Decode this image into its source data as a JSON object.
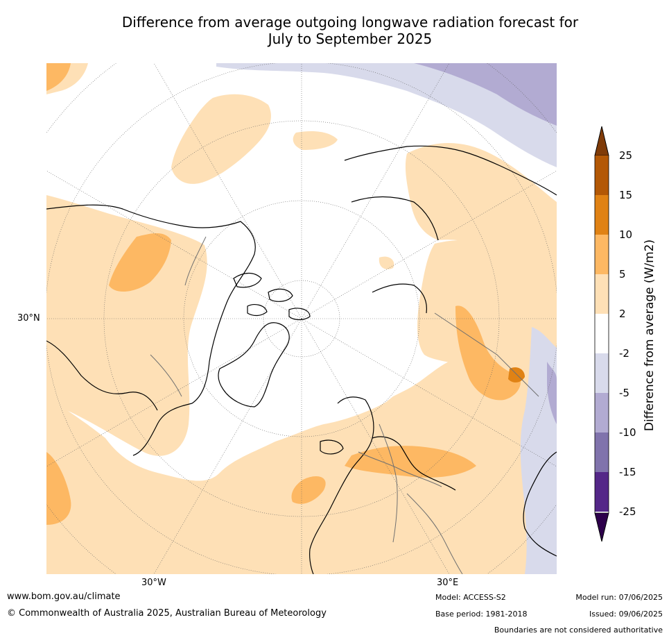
{
  "title_line1": "Difference from average outgoing longwave radiation forecast for",
  "title_line2": "July to September 2025",
  "map": {
    "projection": "north-polar-stereographic",
    "lat_label_30n": "30°N",
    "lon_label_30w": "30°W",
    "lon_label_30e": "30°E"
  },
  "colorbar": {
    "label": "Difference from average (W/m2)",
    "ticks": [
      "25",
      "15",
      "10",
      "5",
      "2",
      "-2",
      "-5",
      "-10",
      "-15",
      "-25"
    ],
    "colors": {
      "gt25": "#7f3b08",
      "15_25": "#b35806",
      "10_15": "#e08214",
      "5_10": "#fdb863",
      "2_5": "#fee0b6",
      "m2_2": "#ffffff",
      "m5_m2": "#d8daeb",
      "m10_m5": "#b2abd2",
      "m15_m10": "#8073ac",
      "m25_m15": "#542788",
      "lt_m25": "#2d004b"
    }
  },
  "footer": {
    "website": "www.bom.gov.au/climate",
    "copyright": "© Commonwealth of Australia 2025, Australian Bureau of Meteorology",
    "model": "Model: ACCESS-S2",
    "base_period": "Base period: 1981-2018",
    "model_run": "Model run: 07/06/2025",
    "issued": "Issued: 09/06/2025",
    "disclaimer": "Boundaries are not considered authoritative"
  }
}
